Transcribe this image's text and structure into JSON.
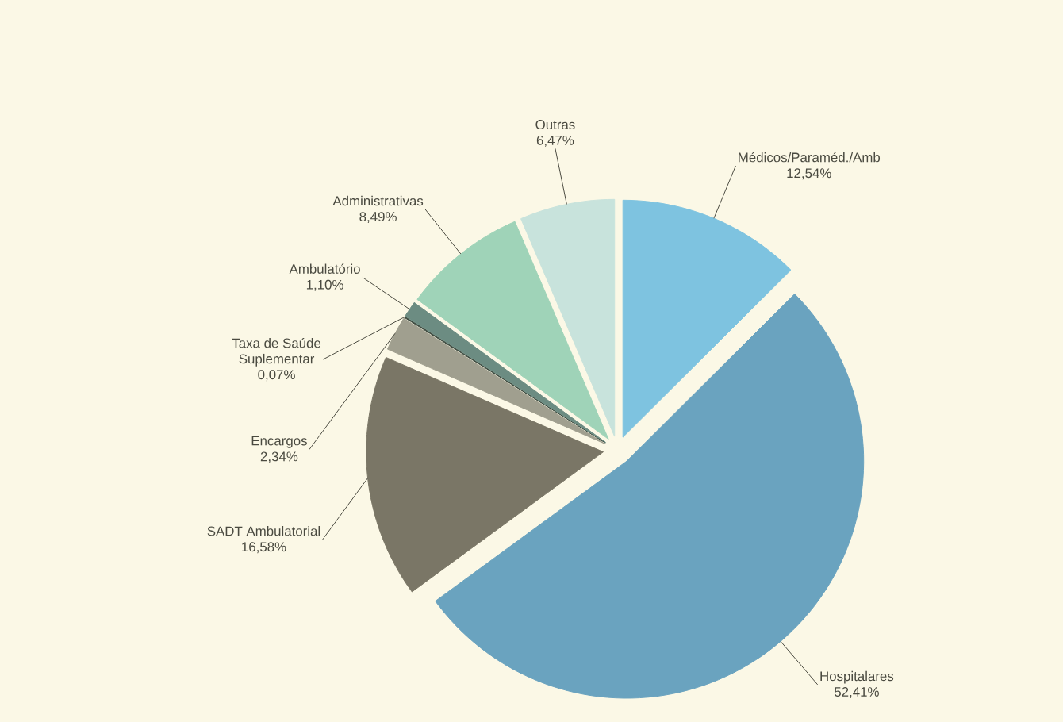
{
  "chart_data": {
    "type": "pie",
    "categories": [
      "Médicos/Paraméd./Amb",
      "Hospitalares",
      "SADT Ambulatorial",
      "Encargos",
      "Taxa de Saúde Suplementar",
      "Ambulatório",
      "Administrativas",
      "Outras"
    ],
    "values": [
      12.54,
      52.41,
      16.58,
      2.34,
      0.07,
      1.1,
      8.49,
      6.47
    ],
    "value_labels": [
      "12,54%",
      "52,41%",
      "16,58%",
      "2,34%",
      "0,07%",
      "1,10%",
      "8,49%",
      "6,47%"
    ],
    "colors": [
      "#7ec3e0",
      "#6aa3bf",
      "#7a7666",
      "#a09f8f",
      "#3d4a40",
      "#6c8c82",
      "#9fd3b8",
      "#c8e3dc"
    ]
  }
}
